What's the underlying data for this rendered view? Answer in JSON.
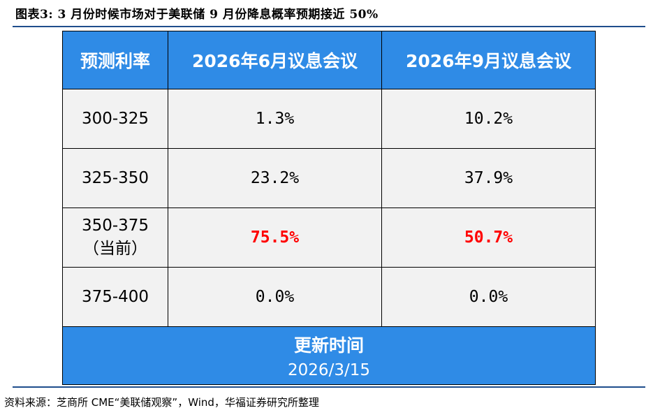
{
  "title": "图表3: 3 月份时候市场对于美联储 9 月份降息概率预期接近 50%",
  "table": {
    "headers": [
      "预测利率",
      "2026年6月议息会议",
      "2026年9月议息会议"
    ],
    "rows": [
      {
        "range": "300-325",
        "range_note": "",
        "june": "1.3%",
        "sept": "10.2%"
      },
      {
        "range": "325-350",
        "range_note": "",
        "june": "23.2%",
        "sept": "37.9%"
      },
      {
        "range": "350-375",
        "range_note": "（当前）",
        "june": "75.5%",
        "sept": "50.7%"
      },
      {
        "range": "375-400",
        "range_note": "",
        "june": "0.0%",
        "sept": "0.0%"
      }
    ],
    "footer_label": "更新时间",
    "footer_date": "2026/3/15"
  },
  "source": "资料来源：芝商所 CME“美联储观察”，Wind，华福证券研究所整理",
  "colors": {
    "header_bg": "#2f8be6",
    "highlight": "#ff0000",
    "rule": "#1f4e8c"
  }
}
